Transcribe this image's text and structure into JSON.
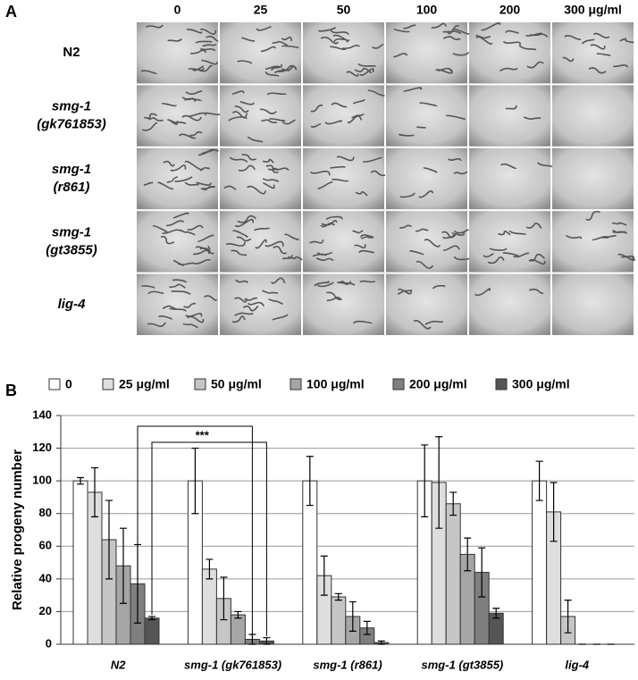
{
  "panel_a": {
    "label": "A",
    "column_headers": [
      "0",
      "25",
      "50",
      "100",
      "200",
      "300 μg/ml"
    ],
    "row_labels": [
      [
        "N2"
      ],
      [
        "smg-1",
        "(gk761853)"
      ],
      [
        "smg-1",
        "(r861)"
      ],
      [
        "smg-1",
        "(gt3855)"
      ],
      [
        "lig-4"
      ]
    ]
  },
  "chart_data": {
    "type": "bar",
    "panel_label": "B",
    "ylabel": "Relative progeny number",
    "categories": [
      "N2",
      "smg-1 (gk761853)",
      "smg-1 (r861)",
      "smg-1 (gt3855)",
      "lig-4"
    ],
    "series": [
      {
        "name": "0",
        "color": "#ffffff",
        "values": [
          100,
          100,
          100,
          100,
          100
        ],
        "errors": [
          2,
          20,
          15,
          22,
          12
        ]
      },
      {
        "name": "25 μg/ml",
        "color": "#dedede",
        "values": [
          93,
          46,
          42,
          99,
          81
        ],
        "errors": [
          15,
          6,
          12,
          28,
          18
        ]
      },
      {
        "name": "50 μg/ml",
        "color": "#c6c6c6",
        "values": [
          64,
          28,
          29,
          86,
          17
        ],
        "errors": [
          24,
          13,
          2,
          7,
          10
        ]
      },
      {
        "name": "100 μg/ml",
        "color": "#a6a6a6",
        "values": [
          48,
          18,
          17,
          55,
          0
        ],
        "errors": [
          23,
          2,
          9,
          10,
          0
        ]
      },
      {
        "name": "200 μg/ml",
        "color": "#7f7f7f",
        "values": [
          37,
          3,
          10,
          44,
          0
        ],
        "errors": [
          24,
          3,
          4,
          15,
          0
        ]
      },
      {
        "name": "300 μg/ml",
        "color": "#555555",
        "values": [
          16,
          2,
          1,
          19,
          0
        ],
        "errors": [
          1,
          2,
          1,
          3,
          0
        ]
      }
    ],
    "ylim": [
      0,
      140
    ],
    "yticks": [
      0,
      20,
      40,
      60,
      80,
      100,
      120,
      140
    ],
    "grid": true,
    "annotation": "***"
  }
}
